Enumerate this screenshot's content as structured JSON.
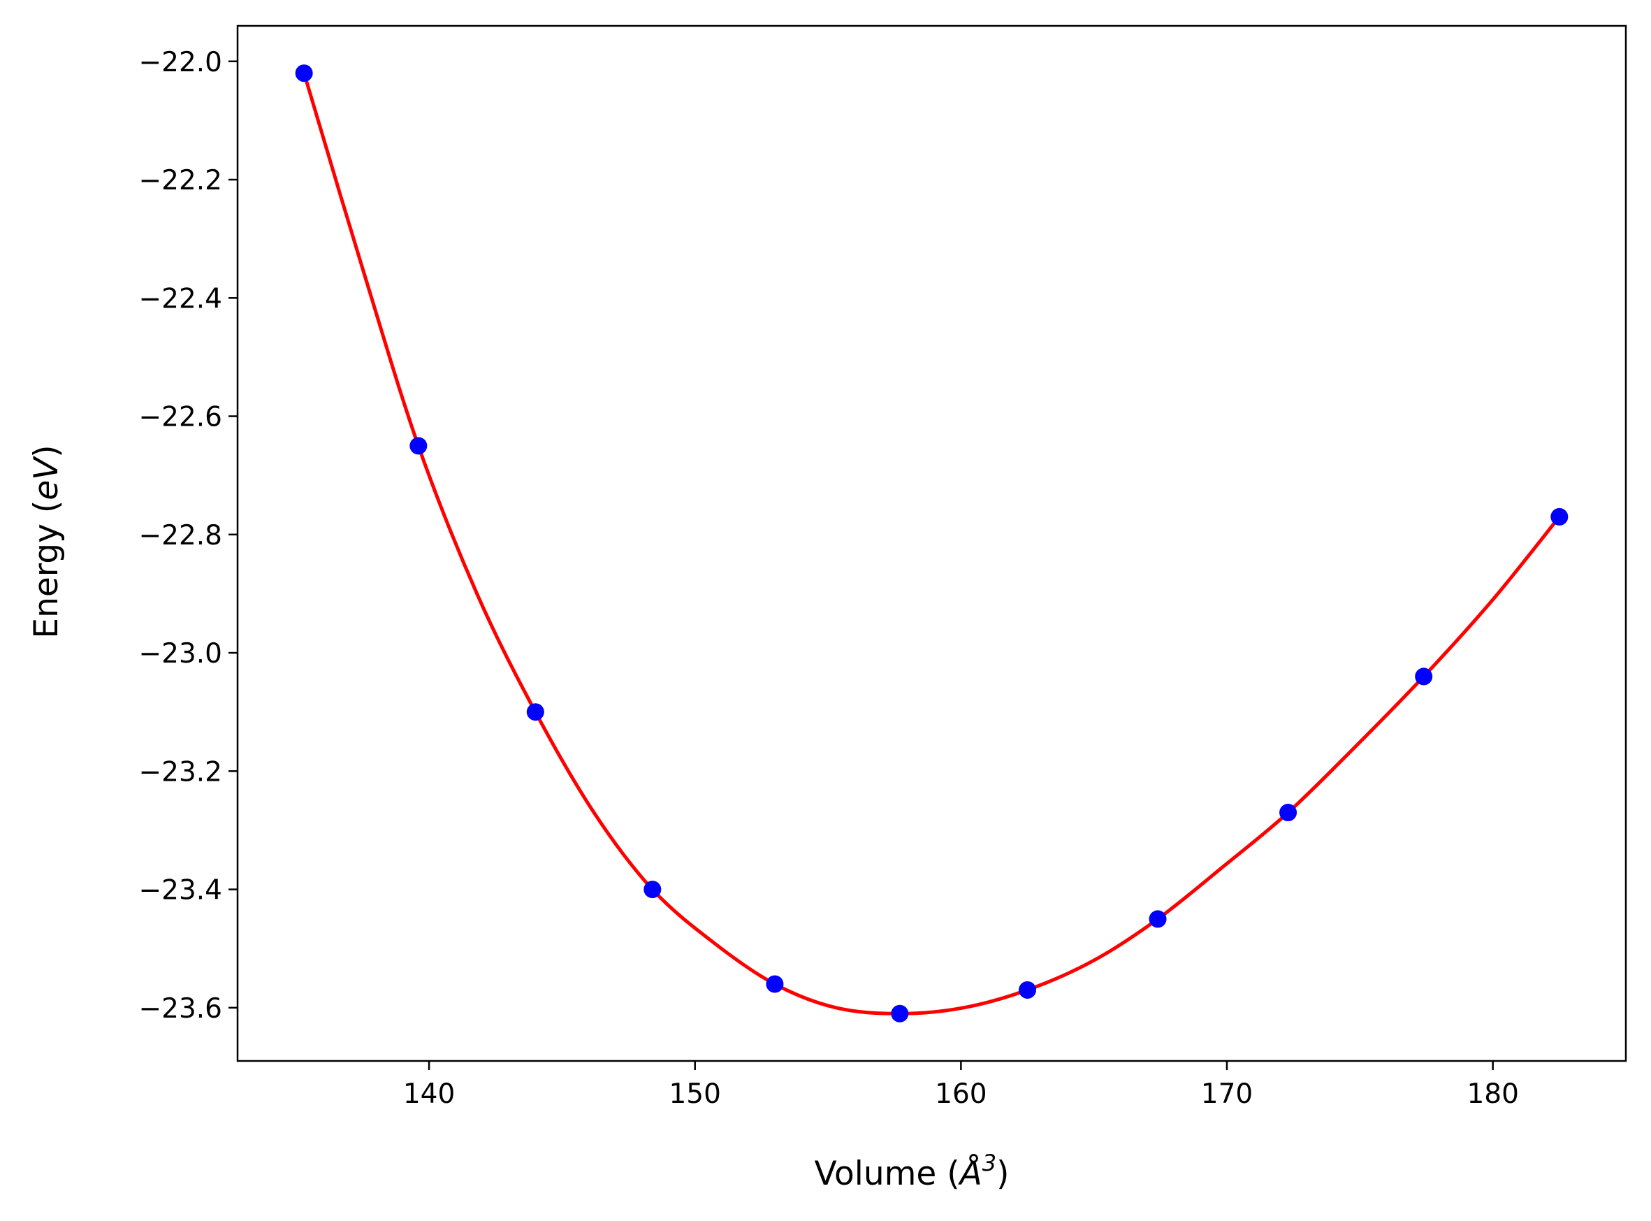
{
  "chart_data": {
    "type": "line",
    "title": "",
    "xlabel": "Volume (Å³)",
    "ylabel": "Energy (eV)",
    "xlabel_parts": {
      "prefix": "Volume (",
      "unit_base": "Å",
      "unit_exp": "3",
      "suffix": ")"
    },
    "ylabel_parts": {
      "prefix": "Energy (",
      "unit": "eV",
      "suffix": ")"
    },
    "xlim": [
      132.8,
      185.0
    ],
    "ylim": [
      -23.69,
      -21.94
    ],
    "xticks": [
      140,
      150,
      160,
      170,
      180
    ],
    "yticks": [
      -22.0,
      -22.2,
      -22.4,
      -22.6,
      -22.8,
      -23.0,
      -23.2,
      -23.4,
      -23.6
    ],
    "xtick_labels": [
      "140",
      "150",
      "160",
      "170",
      "180"
    ],
    "ytick_labels": [
      "−22.0",
      "−22.2",
      "−22.4",
      "−22.6",
      "−22.8",
      "−23.0",
      "−23.2",
      "−23.4",
      "−23.6"
    ],
    "grid": false,
    "series": [
      {
        "kind": "points",
        "color": "#0000ff",
        "x": [
          135.3,
          139.6,
          144.0,
          148.4,
          153.0,
          157.7,
          162.5,
          167.4,
          172.3,
          177.4,
          182.5
        ],
        "y": [
          -22.02,
          -22.65,
          -23.1,
          -23.4,
          -23.56,
          -23.61,
          -23.57,
          -23.45,
          -23.27,
          -23.04,
          -22.77
        ]
      },
      {
        "kind": "fit-curve",
        "color": "#ff0000",
        "x": [
          135.3,
          137.5,
          139.6,
          141.8,
          144.0,
          146.2,
          148.4,
          150.7,
          153.0,
          155.3,
          157.7,
          160.1,
          162.5,
          165.0,
          167.4,
          169.9,
          172.3,
          174.8,
          177.4,
          180.0,
          182.5
        ],
        "y": [
          -22.02,
          -22.35,
          -22.65,
          -22.9,
          -23.1,
          -23.27,
          -23.4,
          -23.49,
          -23.56,
          -23.6,
          -23.61,
          -23.6,
          -23.57,
          -23.52,
          -23.45,
          -23.36,
          -23.27,
          -23.16,
          -23.04,
          -22.91,
          -22.77
        ]
      }
    ]
  }
}
